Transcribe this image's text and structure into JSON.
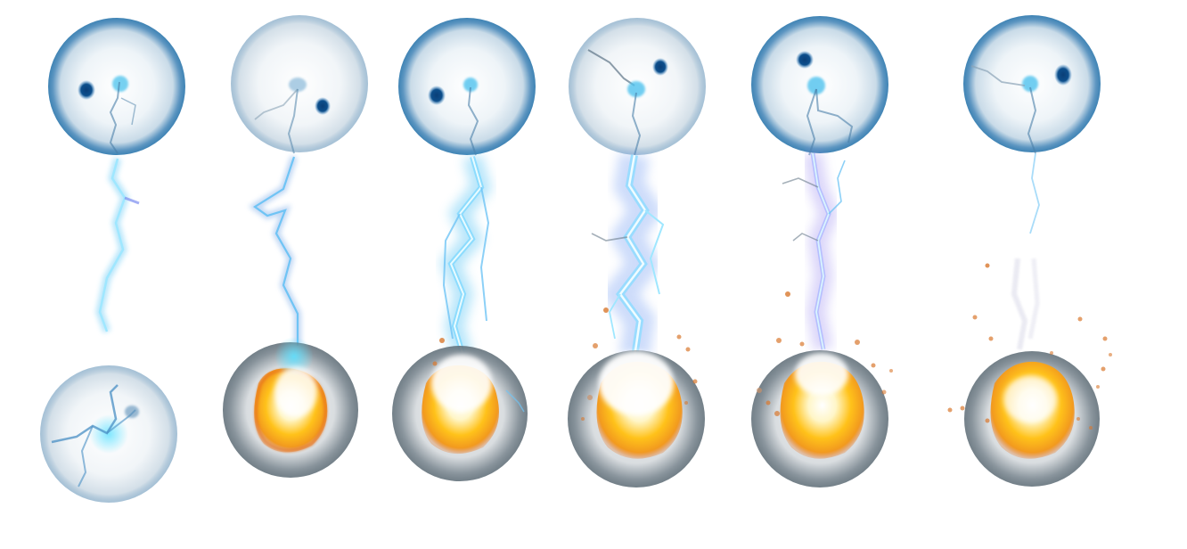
{
  "sprite_sheet": {
    "frame_count": 6,
    "background": "#ffffff",
    "palette": {
      "orb_rim": "#1f6fa8",
      "orb_glass": "#eef4f8",
      "eye": "#0d4f8c",
      "lightning_core": "#e8fbff",
      "lightning_glow": "#38b9f2",
      "lightning_violet": "#9b8cf0",
      "fireball_core": "#fff6c8",
      "fireball_mid": "#ffc21a",
      "fireball_edge": "#e8731a",
      "spark": "#d8782e"
    },
    "frames": [
      {
        "bolt_strength": 0.4,
        "impact": "glass",
        "sparks": 0
      },
      {
        "bolt_strength": 0.55,
        "impact": "fire",
        "sparks": 0
      },
      {
        "bolt_strength": 0.95,
        "impact": "fire",
        "sparks": 2
      },
      {
        "bolt_strength": 1.0,
        "impact": "fire",
        "sparks": 8
      },
      {
        "bolt_strength": 0.75,
        "impact": "fire",
        "sparks": 10
      },
      {
        "bolt_strength": 0.25,
        "impact": "fire",
        "sparks": 14
      }
    ]
  }
}
